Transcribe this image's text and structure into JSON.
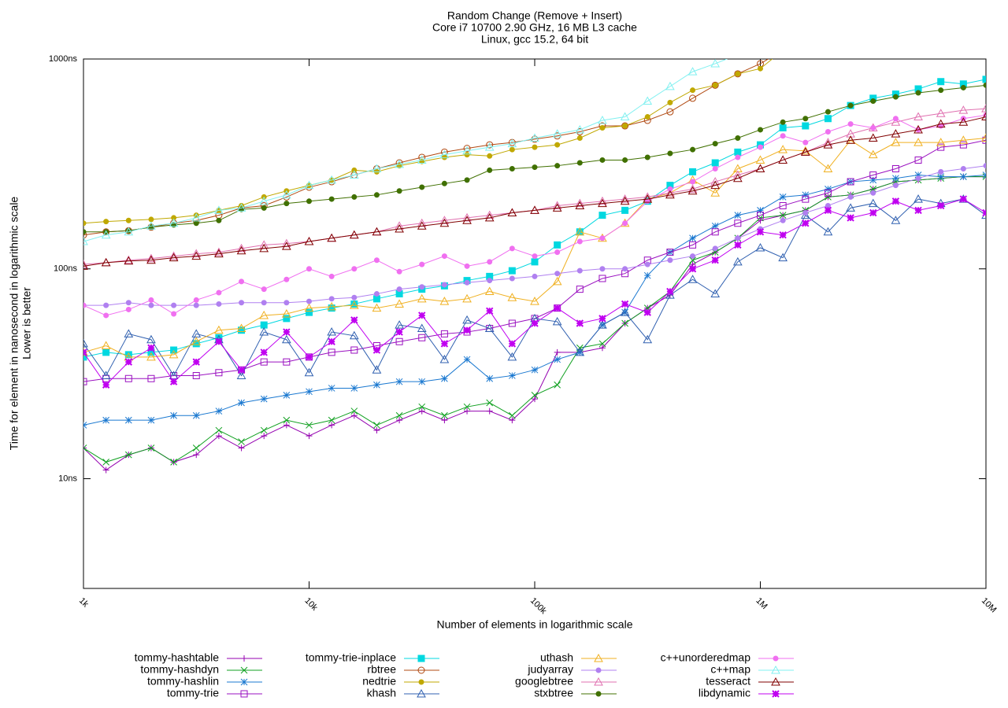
{
  "chart_data": {
    "type": "line",
    "title": "Random Change (Remove + Insert)",
    "subtitle": [
      "Core i7 10700 2.90 GHz, 16 MB L3 cache",
      "Linux, gcc 15.2, 64 bit"
    ],
    "xlabel": "Number of elements in logarithmic scale",
    "ylabel": [
      "Time for element in nanosecond in logarithmic scale",
      "Lower is better"
    ],
    "xlog": true,
    "ylog": true,
    "grid": false,
    "xlim": [
      1000,
      10000000
    ],
    "ylim": [
      3,
      1000
    ],
    "xticks": [
      {
        "value": 1000,
        "label": "1k"
      },
      {
        "value": 10000,
        "label": "10k"
      },
      {
        "value": 100000,
        "label": "100k"
      },
      {
        "value": 1000000,
        "label": "1M"
      },
      {
        "value": 10000000,
        "label": "10M"
      }
    ],
    "yticks": [
      {
        "value": 10,
        "label": "10ns"
      },
      {
        "value": 100,
        "label": "100ns"
      },
      {
        "value": 1000,
        "label": "1000ns"
      }
    ],
    "x": [
      1000,
      1259,
      1585,
      1995,
      2512,
      3162,
      3981,
      5012,
      6310,
      7943,
      10000,
      12590,
      15850,
      19950,
      25120,
      31620,
      39810,
      50120,
      63100,
      79430,
      100000,
      125900,
      158500,
      199500,
      251200,
      316200,
      398100,
      501200,
      631000,
      794300,
      1000000,
      1259000,
      1585000,
      1995000,
      2512000,
      3162000,
      3981000,
      5012000,
      6310000,
      7943000,
      10000000
    ],
    "series": [
      {
        "name": "tommy-hashtable",
        "color": "#9400b0",
        "marker": "plus",
        "values": [
          14,
          11,
          13,
          14,
          12,
          13,
          16,
          14,
          16,
          18,
          16,
          18,
          20,
          17,
          19,
          21,
          19,
          21,
          21,
          19,
          24,
          40,
          40,
          42,
          55,
          65,
          75,
          105,
          120,
          140,
          170,
          180,
          190,
          220,
          225,
          240,
          260,
          265,
          270,
          275,
          275
        ]
      },
      {
        "name": "tommy-hashdyn",
        "color": "#10a020",
        "marker": "cross",
        "values": [
          14,
          12,
          13,
          14,
          12,
          14,
          17,
          15,
          17,
          19,
          18,
          19,
          21,
          18,
          20,
          22,
          20,
          22,
          23,
          20,
          25,
          28,
          42,
          44,
          55,
          65,
          78,
          110,
          120,
          140,
          175,
          180,
          190,
          220,
          225,
          240,
          260,
          265,
          270,
          275,
          275
        ]
      },
      {
        "name": "tommy-hashlin",
        "color": "#1a78d0",
        "marker": "star",
        "values": [
          18,
          19,
          19,
          19,
          20,
          20,
          21,
          23,
          24,
          25,
          26,
          27,
          27,
          28,
          29,
          29,
          30,
          37,
          30,
          31,
          33,
          37,
          40,
          54,
          62,
          93,
          120,
          140,
          160,
          180,
          190,
          220,
          225,
          240,
          260,
          265,
          270,
          280,
          275,
          275,
          280
        ]
      },
      {
        "name": "tommy-trie",
        "color": "#9a10c0",
        "marker": "square",
        "values": [
          29,
          30,
          30,
          30,
          31,
          31,
          32,
          33,
          36,
          36,
          38,
          40,
          41,
          43,
          45,
          47,
          49,
          50,
          52,
          55,
          58,
          65,
          80,
          90,
          95,
          110,
          120,
          130,
          150,
          165,
          180,
          200,
          215,
          230,
          260,
          280,
          300,
          330,
          380,
          390,
          410
        ]
      },
      {
        "name": "tommy-trie-inplace",
        "color": "#00d8e0",
        "marker": "fsquare",
        "values": [
          38,
          40,
          39,
          40,
          41,
          44,
          47,
          51,
          54,
          58,
          62,
          65,
          68,
          72,
          76,
          80,
          83,
          88,
          92,
          98,
          108,
          130,
          150,
          180,
          190,
          210,
          250,
          290,
          320,
          360,
          390,
          470,
          480,
          520,
          600,
          650,
          680,
          720,
          780,
          760,
          800
        ]
      },
      {
        "name": "rbtree",
        "color": "#b04810",
        "marker": "circle",
        "values": [
          145,
          150,
          152,
          158,
          165,
          170,
          180,
          195,
          200,
          220,
          245,
          260,
          280,
          300,
          320,
          340,
          360,
          375,
          390,
          400,
          415,
          430,
          450,
          480,
          480,
          510,
          560,
          650,
          750,
          850,
          950,
          1100,
          null,
          null,
          null,
          null,
          null,
          null,
          null,
          null,
          null
        ]
      },
      {
        "name": "nedtrie",
        "color": "#c0a800",
        "marker": "fcircle",
        "values": [
          165,
          168,
          170,
          172,
          175,
          180,
          190,
          200,
          220,
          235,
          250,
          265,
          295,
          290,
          310,
          325,
          340,
          350,
          345,
          370,
          380,
          390,
          420,
          470,
          480,
          530,
          620,
          710,
          750,
          850,
          900,
          1100,
          null,
          null,
          null,
          null,
          null,
          null,
          null,
          null,
          null
        ]
      },
      {
        "name": "khash",
        "color": "#3060b0",
        "marker": "triangle",
        "values": [
          44,
          31,
          49,
          46,
          31,
          49,
          46,
          31,
          50,
          46,
          32,
          50,
          48,
          33,
          54,
          52,
          37,
          57,
          52,
          38,
          58,
          56,
          40,
          54,
          62,
          46,
          75,
          89,
          76,
          108,
          126,
          113,
          180,
          150,
          195,
          205,
          170,
          215,
          205,
          215,
          180
        ]
      },
      {
        "name": "uthash",
        "color": "#f0b020",
        "marker": "triangle",
        "values": [
          40,
          43,
          38,
          38,
          39,
          45,
          51,
          52,
          60,
          61,
          65,
          66,
          67,
          65,
          68,
          72,
          70,
          72,
          78,
          73,
          70,
          87,
          150,
          140,
          165,
          215,
          230,
          265,
          230,
          300,
          330,
          370,
          365,
          300,
          410,
          350,
          400,
          400,
          400,
          410,
          420
        ]
      },
      {
        "name": "judyarray",
        "color": "#b080f0",
        "marker": "fcircle",
        "values": [
          67,
          67,
          69,
          67,
          67,
          67,
          68,
          69,
          69,
          69,
          70,
          72,
          73,
          76,
          80,
          82,
          84,
          86,
          88,
          90,
          92,
          95,
          98,
          100,
          100,
          105,
          110,
          115,
          125,
          140,
          155,
          170,
          185,
          200,
          220,
          230,
          250,
          270,
          290,
          300,
          310
        ]
      },
      {
        "name": "googlebtree",
        "color": "#e070b0",
        "marker": "triangle",
        "values": [
          105,
          107,
          110,
          112,
          115,
          118,
          120,
          125,
          130,
          132,
          135,
          140,
          145,
          150,
          160,
          165,
          170,
          175,
          180,
          185,
          190,
          200,
          205,
          210,
          215,
          220,
          230,
          240,
          260,
          280,
          300,
          330,
          360,
          400,
          440,
          470,
          500,
          530,
          550,
          570,
          580
        ]
      },
      {
        "name": "stxbtree",
        "color": "#407000",
        "marker": "fcircle",
        "values": [
          150,
          150,
          152,
          158,
          162,
          165,
          170,
          192,
          195,
          205,
          210,
          215,
          220,
          225,
          235,
          245,
          255,
          265,
          295,
          300,
          305,
          310,
          320,
          330,
          330,
          340,
          355,
          370,
          395,
          420,
          460,
          500,
          520,
          560,
          600,
          630,
          660,
          690,
          710,
          730,
          750
        ]
      },
      {
        "name": "c++unorderedmap",
        "color": "#f070f0",
        "marker": "fcircle",
        "values": [
          67,
          60,
          64,
          71,
          61,
          71,
          77,
          87,
          80,
          89,
          100,
          92,
          100,
          110,
          97,
          105,
          115,
          103,
          108,
          125,
          115,
          120,
          135,
          140,
          165,
          210,
          240,
          260,
          300,
          340,
          380,
          430,
          400,
          450,
          490,
          470,
          520,
          460,
          480,
          520,
          540
        ]
      },
      {
        "name": "c++map",
        "color": "#80f0f0",
        "marker": "triangle",
        "values": [
          135,
          145,
          150,
          160,
          165,
          175,
          190,
          195,
          210,
          225,
          250,
          265,
          280,
          300,
          315,
          330,
          350,
          365,
          380,
          395,
          420,
          440,
          460,
          510,
          530,
          630,
          740,
          870,
          950,
          1050,
          null,
          null,
          null,
          null,
          null,
          null,
          null,
          null,
          null,
          null,
          null
        ]
      },
      {
        "name": "tesseract",
        "color": "#800000",
        "marker": "triangle",
        "values": [
          103,
          107,
          109,
          110,
          113,
          115,
          118,
          122,
          125,
          128,
          135,
          140,
          145,
          150,
          155,
          160,
          165,
          170,
          175,
          185,
          190,
          195,
          200,
          205,
          210,
          215,
          225,
          235,
          250,
          270,
          300,
          330,
          360,
          390,
          410,
          420,
          440,
          460,
          490,
          500,
          530
        ]
      },
      {
        "name": "libdynamic",
        "color": "#c000f0",
        "marker": "fstar",
        "values": [
          40,
          28,
          36,
          42,
          29,
          36,
          45,
          33,
          40,
          50,
          38,
          45,
          57,
          41,
          50,
          60,
          44,
          51,
          63,
          44,
          55,
          65,
          55,
          58,
          68,
          62,
          78,
          100,
          110,
          130,
          150,
          145,
          165,
          190,
          175,
          185,
          210,
          190,
          200,
          215,
          185
        ]
      }
    ]
  }
}
